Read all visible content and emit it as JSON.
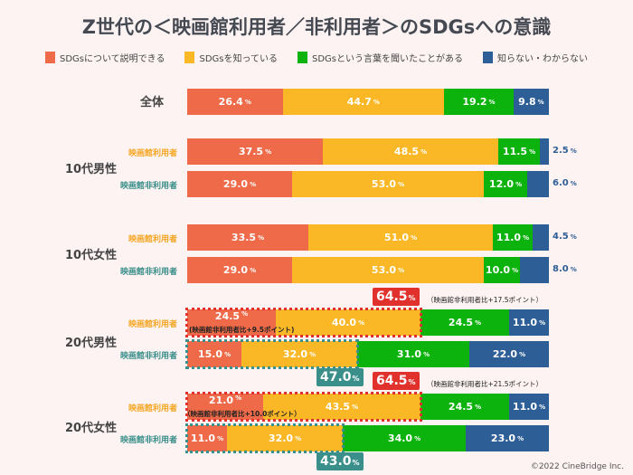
{
  "chart_data": {
    "type": "bar",
    "stacked": true,
    "orientation": "horizontal",
    "title": "Z世代の＜映画館利用者／非利用者＞のSDGsへの意識",
    "xlim": [
      0,
      100
    ],
    "unit": "%",
    "legend_position": "top",
    "series": [
      {
        "name": "SDGsについて説明できる",
        "color": "#ee6a48"
      },
      {
        "name": "SDGsを知っている",
        "color": "#fbb826"
      },
      {
        "name": "SDGsという言葉を聞いたことがある",
        "color": "#0cb30c"
      },
      {
        "name": "知らない・わからない",
        "color": "#2d5e96"
      }
    ],
    "groups": [
      {
        "label": "全体",
        "rows": [
          {
            "label": "",
            "values": [
              26.4,
              44.7,
              19.2,
              9.8
            ]
          }
        ]
      },
      {
        "label": "10代男性",
        "rows": [
          {
            "label": "映画館利用者",
            "values": [
              37.5,
              48.5,
              11.5,
              2.5
            ]
          },
          {
            "label": "映画館非利用者",
            "values": [
              29.0,
              53.0,
              12.0,
              6.0
            ]
          }
        ]
      },
      {
        "label": "10代女性",
        "rows": [
          {
            "label": "映画館利用者",
            "values": [
              33.5,
              51.0,
              11.0,
              4.5
            ]
          },
          {
            "label": "映画館非利用者",
            "values": [
              29.0,
              53.0,
              10.0,
              8.0
            ]
          }
        ]
      },
      {
        "label": "20代男性",
        "rows": [
          {
            "label": "映画館利用者",
            "values": [
              24.5,
              40.0,
              24.5,
              11.0
            ]
          },
          {
            "label": "映画館非利用者",
            "values": [
              15.0,
              32.0,
              31.0,
              22.0
            ]
          }
        ]
      },
      {
        "label": "20代女性",
        "rows": [
          {
            "label": "映画館利用者",
            "values": [
              21.0,
              43.5,
              24.5,
              11.0
            ]
          },
          {
            "label": "映画館非利用者",
            "values": [
              11.0,
              32.0,
              34.0,
              23.0
            ]
          }
        ]
      }
    ],
    "annotations": [
      {
        "group": "20代男性",
        "user_total": "64.5",
        "user_note": "（映画館非利用者比+17.5ポイント）",
        "first_note": "(映画館非利用者比+9.5ポイント)",
        "nonuser_total": "47.0"
      },
      {
        "group": "20代女性",
        "user_total": "64.5",
        "user_note": "（映画館非利用者比+21.5ポイント）",
        "first_note": "（映画館非利用者比+10.0ポイント）",
        "nonuser_total": "43.0"
      }
    ],
    "label_colors": {
      "user": "#f5a623",
      "nonuser": "#3a8f8a"
    }
  },
  "footer": {
    "copyright": "©2022 CineBridge Inc."
  }
}
